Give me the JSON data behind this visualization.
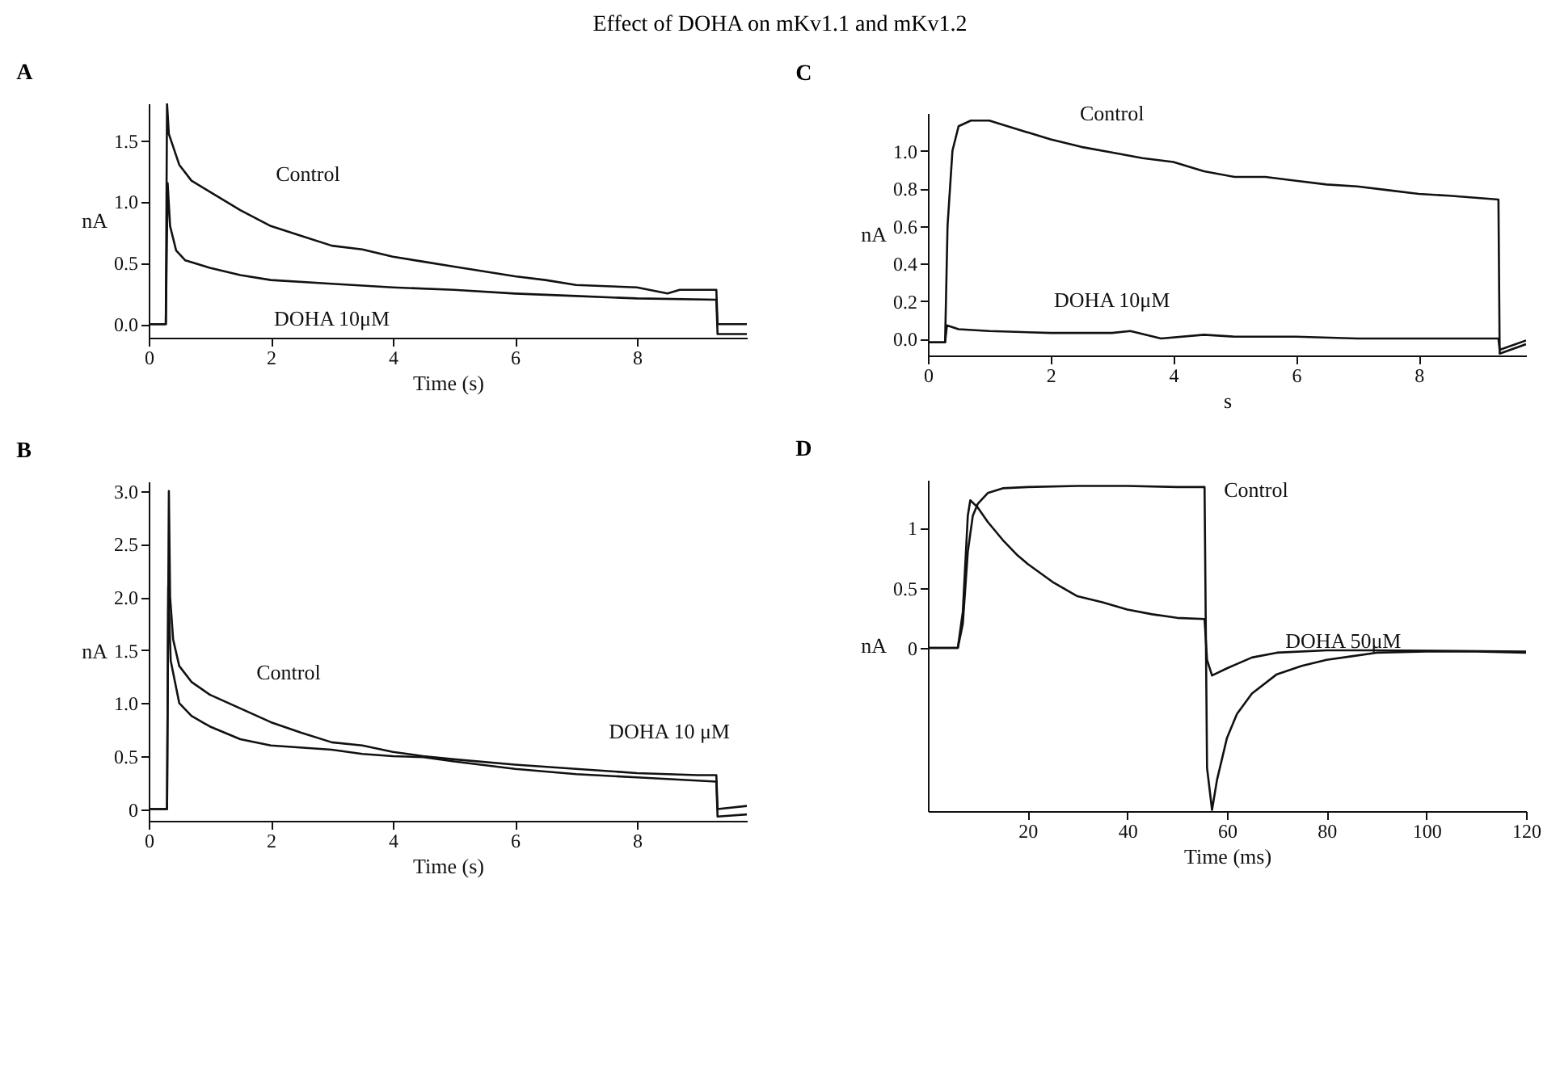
{
  "chart_data": [
    {
      "type": "line",
      "title": "Effect of DOHA on mKv1.1 and mKv1.2",
      "subtitle": "A",
      "xlabel": "Time (s)",
      "ylabel": "nA",
      "xlim": [
        0,
        9.8
      ],
      "xticks": [
        0,
        2,
        4,
        6,
        8
      ],
      "ylim": [
        -0.11,
        1.8
      ],
      "yticks": [
        {
          "value": 0,
          "label": "0.0"
        },
        0.5,
        {
          "value": 1,
          "label": "1.0"
        },
        1.5
      ],
      "series": [
        {
          "name": "Control",
          "color": "#111111",
          "x": [
            0,
            0.28,
            0.3,
            0.33,
            0.5,
            0.7,
            1,
            1.5,
            2,
            2.5,
            3,
            3.5,
            4,
            4.5,
            5,
            5.5,
            6,
            6.5,
            7,
            7.5,
            8,
            8.5,
            8.7,
            9.3,
            9.32,
            9.8
          ],
          "values": [
            0,
            0,
            1.8,
            1.55,
            1.3,
            1.17,
            1.08,
            0.93,
            0.8,
            0.72,
            0.64,
            0.61,
            0.55,
            0.51,
            0.47,
            0.43,
            0.39,
            0.36,
            0.32,
            0.31,
            0.3,
            0.25,
            0.28,
            0.28,
            0.0,
            0.0
          ]
        },
        {
          "name": "DOHA 10μM",
          "color": "#111111",
          "x": [
            0,
            0.28,
            0.31,
            0.35,
            0.45,
            0.6,
            1,
            1.5,
            2,
            3,
            4,
            5,
            6,
            7,
            8,
            9.3,
            9.32,
            9.8
          ],
          "values": [
            0,
            0,
            1.15,
            0.8,
            0.6,
            0.52,
            0.46,
            0.4,
            0.36,
            0.33,
            0.3,
            0.28,
            0.25,
            0.23,
            0.21,
            0.2,
            -0.08,
            -0.08
          ]
        }
      ]
    },
    {
      "type": "line",
      "title": "C",
      "xlabel": "s",
      "ylabel": "nA",
      "xlim": [
        0,
        9.75
      ],
      "xticks": [
        0,
        2,
        4,
        6,
        8
      ],
      "ylim": [
        -0.09,
        1.2
      ],
      "yticks": [
        {
          "value": 0,
          "label": "0.0"
        },
        0.2,
        0.4,
        0.6,
        0.8,
        {
          "value": 1,
          "label": "1.0"
        }
      ],
      "series": [
        {
          "name": "Control",
          "color": "#111111",
          "x": [
            0,
            0.28,
            0.32,
            0.4,
            0.5,
            0.7,
            1,
            1.5,
            2,
            2.5,
            3,
            3.5,
            4,
            4.5,
            5,
            5.5,
            6,
            6.5,
            7,
            7.5,
            8,
            8.5,
            9.3,
            9.32,
            9.75
          ],
          "values": [
            -0.02,
            -0.02,
            0.6,
            1.0,
            1.13,
            1.16,
            1.16,
            1.11,
            1.06,
            1.02,
            0.99,
            0.96,
            0.94,
            0.89,
            0.86,
            0.86,
            0.84,
            0.82,
            0.81,
            0.79,
            0.77,
            0.76,
            0.74,
            -0.08,
            -0.03
          ]
        },
        {
          "name": "DOHA 10μM",
          "color": "#111111",
          "x": [
            0,
            0.28,
            0.31,
            0.5,
            1,
            2,
            3,
            3.3,
            3.8,
            4.5,
            5,
            6,
            7,
            8,
            9.3,
            9.32,
            9.75
          ],
          "values": [
            -0.02,
            -0.02,
            0.07,
            0.05,
            0.04,
            0.03,
            0.03,
            0.04,
            0.0,
            0.02,
            0.01,
            0.01,
            0.0,
            0.0,
            0.0,
            -0.06,
            -0.01
          ]
        }
      ]
    },
    {
      "type": "line",
      "title": "B",
      "xlabel": "Time (s)",
      "ylabel": "nA",
      "xlim": [
        0,
        9.8
      ],
      "xticks": [
        0,
        2,
        4,
        6,
        8
      ],
      "ylim": [
        -0.11,
        3.09
      ],
      "yticks": [
        0,
        0.5,
        {
          "value": 1,
          "label": "1.0"
        },
        1.5,
        {
          "value": 2,
          "label": "2.0"
        },
        2.5,
        {
          "value": 3,
          "label": "3.0"
        }
      ],
      "series": [
        {
          "name": "Control",
          "color": "#111111",
          "x": [
            0,
            0.3,
            0.33,
            0.35,
            0.4,
            0.5,
            0.7,
            1,
            1.5,
            2,
            2.5,
            3,
            3.5,
            4,
            4.5,
            5,
            6,
            7,
            8,
            9,
            9.3,
            9.32,
            9.8
          ],
          "values": [
            0,
            0,
            3.0,
            2.0,
            1.6,
            1.35,
            1.2,
            1.08,
            0.95,
            0.82,
            0.72,
            0.63,
            0.6,
            0.54,
            0.5,
            0.47,
            0.42,
            0.38,
            0.34,
            0.32,
            0.32,
            0.0,
            0.03
          ]
        },
        {
          "name": "DOHA 10 μM",
          "color": "#111111",
          "x": [
            0,
            0.3,
            0.32,
            0.36,
            0.5,
            0.7,
            1,
            1.5,
            2,
            3,
            3.5,
            4,
            4.5,
            5,
            6,
            7,
            8,
            9.3,
            9.32,
            9.8
          ],
          "values": [
            0,
            0,
            2.1,
            1.4,
            1.0,
            0.88,
            0.78,
            0.66,
            0.6,
            0.56,
            0.52,
            0.5,
            0.49,
            0.45,
            0.38,
            0.33,
            0.3,
            0.26,
            -0.07,
            -0.05
          ]
        }
      ]
    },
    {
      "type": "line",
      "title": "D",
      "xlabel": "Time (ms)",
      "ylabel": "nA",
      "xlim": [
        0,
        120
      ],
      "xticks": [
        20,
        40,
        60,
        80,
        100,
        120
      ],
      "ylim": [
        -1.36,
        1.4
      ],
      "yticks": [
        0,
        0.5,
        1
      ],
      "series": [
        {
          "name": "Control",
          "color": "#111111",
          "x": [
            0,
            6,
            7,
            8,
            9,
            10,
            12,
            15,
            20,
            30,
            40,
            50,
            55.5,
            56,
            57,
            58,
            60,
            62,
            65,
            70,
            75,
            80,
            85,
            90,
            100,
            110,
            120
          ],
          "values": [
            0,
            0,
            0.2,
            0.8,
            1.1,
            1.2,
            1.29,
            1.33,
            1.34,
            1.35,
            1.35,
            1.34,
            1.34,
            -1.0,
            -1.35,
            -1.1,
            -0.75,
            -0.55,
            -0.38,
            -0.22,
            -0.15,
            -0.1,
            -0.07,
            -0.04,
            -0.03,
            -0.03,
            -0.04
          ]
        },
        {
          "name": "DOHA 50μM",
          "color": "#111111",
          "x": [
            0,
            6,
            7,
            8,
            8.5,
            10,
            12,
            15,
            18,
            20,
            25,
            30,
            35,
            40,
            45,
            50,
            55.5,
            56,
            57,
            60,
            65,
            70,
            80,
            90,
            120
          ],
          "values": [
            0,
            0,
            0.3,
            1.1,
            1.23,
            1.17,
            1.05,
            0.9,
            0.77,
            0.7,
            0.55,
            0.43,
            0.38,
            0.32,
            0.28,
            0.25,
            0.24,
            -0.1,
            -0.23,
            -0.17,
            -0.08,
            -0.04,
            -0.02,
            -0.02,
            -0.03
          ]
        }
      ]
    }
  ]
}
